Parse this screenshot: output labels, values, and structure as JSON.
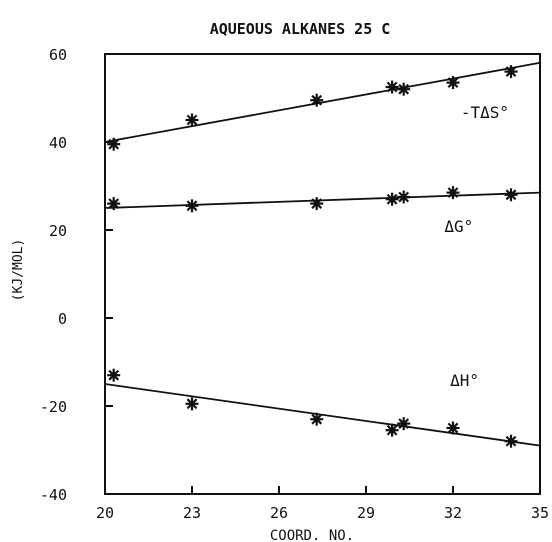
{
  "chart_data": {
    "type": "scatter",
    "title": "AQUEOUS ALKANES  25 C",
    "xlabel": "COORD. NO.",
    "ylabel": "(KJ/MOL)",
    "xlim": [
      20,
      35
    ],
    "ylim": [
      -40,
      60
    ],
    "xticks": [
      20,
      23,
      26,
      29,
      32,
      35
    ],
    "yticks": [
      -40,
      -20,
      0,
      20,
      40,
      60
    ],
    "grid": false,
    "series": [
      {
        "name": "-TΔS°",
        "points": [
          [
            20.3,
            39.5
          ],
          [
            23.0,
            45.0
          ],
          [
            27.3,
            49.5
          ],
          [
            29.9,
            52.5
          ],
          [
            30.3,
            52.0
          ],
          [
            32.0,
            53.5
          ],
          [
            34.0,
            56.0
          ]
        ],
        "fit": [
          [
            20,
            40.0
          ],
          [
            35,
            58.0
          ]
        ]
      },
      {
        "name": "ΔG°",
        "points": [
          [
            20.3,
            26.0
          ],
          [
            23.0,
            25.5
          ],
          [
            27.3,
            26.0
          ],
          [
            29.9,
            27.0
          ],
          [
            30.3,
            27.5
          ],
          [
            32.0,
            28.5
          ],
          [
            34.0,
            28.0
          ]
        ],
        "fit": [
          [
            20,
            25.0
          ],
          [
            35,
            28.5
          ]
        ]
      },
      {
        "name": "ΔH°",
        "points": [
          [
            20.3,
            -13.0
          ],
          [
            23.0,
            -19.5
          ],
          [
            27.3,
            -23.0
          ],
          [
            29.9,
            -25.5
          ],
          [
            30.3,
            -24.0
          ],
          [
            32.0,
            -25.0
          ],
          [
            34.0,
            -28.0
          ]
        ],
        "fit": [
          [
            20,
            -15.0
          ],
          [
            35,
            -29.0
          ]
        ]
      }
    ]
  }
}
